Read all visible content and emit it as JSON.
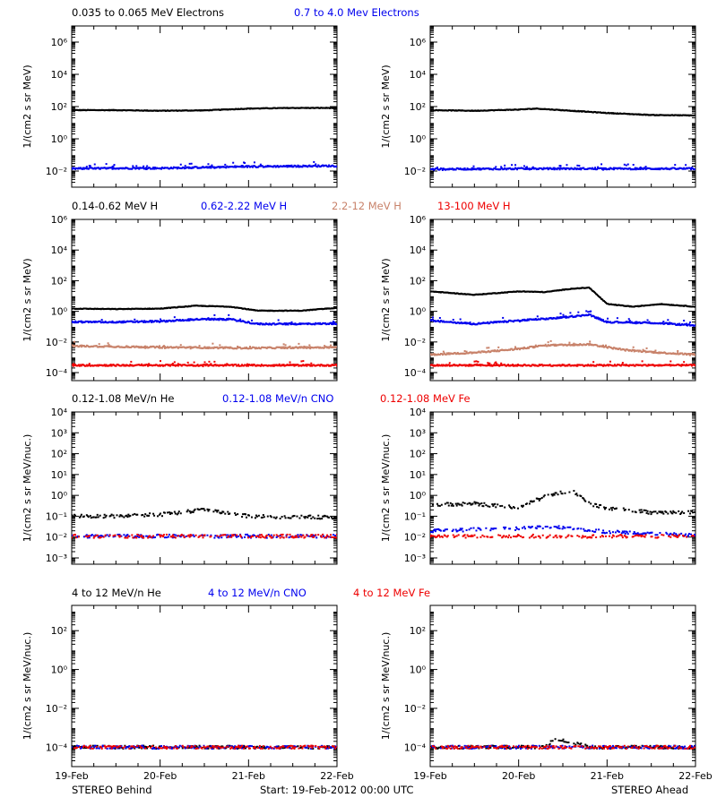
{
  "colors": {
    "black": "#000000",
    "blue": "#0000ee",
    "tan": "#c8826a",
    "red": "#ee0000"
  },
  "footer": {
    "left": "STEREO Behind",
    "center": "Start: 19-Feb-2012 00:00 UTC",
    "right": "STEREO Ahead"
  },
  "chart_data": [
    {
      "type": "scatter",
      "panel": "row1-left",
      "scale": "log",
      "ylabel": "1/(cm2 s sr MeV)",
      "ylim": [
        0.001,
        10000000
      ],
      "ytick_exponents": [
        -2,
        0,
        2,
        4,
        6
      ],
      "xtick_labels": [
        "19-Feb",
        "20-Feb",
        "21-Feb",
        "22-Feb"
      ],
      "xlim_days": [
        0,
        3
      ],
      "series": [
        {
          "name": "0.035 to 0.065 MeV Electrons",
          "color": "#000000",
          "points": [
            [
              0,
              60
            ],
            [
              0.5,
              60
            ],
            [
              1,
              55
            ],
            [
              1.5,
              58
            ],
            [
              2,
              75
            ],
            [
              2.5,
              82
            ],
            [
              3,
              82
            ]
          ]
        },
        {
          "name": "0.7 to 4.0 Mev Electrons",
          "color": "#0000ee",
          "points": [
            [
              0,
              0.014
            ],
            [
              0.5,
              0.015
            ],
            [
              1,
              0.015
            ],
            [
              1.5,
              0.017
            ],
            [
              2,
              0.019
            ],
            [
              2.5,
              0.02
            ],
            [
              3,
              0.021
            ]
          ]
        }
      ]
    },
    {
      "type": "scatter",
      "panel": "row1-right",
      "scale": "log",
      "ylabel": "1/(cm2 s sr MeV)",
      "ylim": [
        0.001,
        10000000
      ],
      "ytick_exponents": [
        -2,
        0,
        2,
        4,
        6
      ],
      "xtick_labels": [
        "19-Feb",
        "20-Feb",
        "21-Feb",
        "22-Feb"
      ],
      "xlim_days": [
        0,
        3
      ],
      "series": [
        {
          "name": "0.035 to 0.065 MeV Electrons",
          "color": "#000000",
          "points": [
            [
              0,
              60
            ],
            [
              0.5,
              55
            ],
            [
              1,
              65
            ],
            [
              1.2,
              75
            ],
            [
              1.6,
              55
            ],
            [
              2,
              40
            ],
            [
              2.5,
              30
            ],
            [
              3,
              28
            ]
          ]
        },
        {
          "name": "0.7 to 4.0 Mev Electrons",
          "color": "#0000ee",
          "points": [
            [
              0,
              0.013
            ],
            [
              1,
              0.014
            ],
            [
              2,
              0.014
            ],
            [
              3,
              0.014
            ]
          ]
        }
      ]
    },
    {
      "type": "scatter",
      "panel": "row2-left",
      "scale": "log",
      "ylabel": "1/(cm2 s sr MeV)",
      "ylim": [
        3e-05,
        1000000
      ],
      "ytick_exponents": [
        -4,
        -2,
        0,
        2,
        4,
        6
      ],
      "xtick_labels": [
        "19-Feb",
        "20-Feb",
        "21-Feb",
        "22-Feb"
      ],
      "xlim_days": [
        0,
        3
      ],
      "series": [
        {
          "name": "0.14-0.62 MeV H",
          "color": "#000000",
          "points": [
            [
              0,
              1.5
            ],
            [
              0.5,
              1.4
            ],
            [
              1,
              1.5
            ],
            [
              1.4,
              2.3
            ],
            [
              1.8,
              2.0
            ],
            [
              2.1,
              1.1
            ],
            [
              2.6,
              1.1
            ],
            [
              3,
              1.7
            ]
          ]
        },
        {
          "name": "0.62-2.22 MeV H",
          "color": "#0000ee",
          "points": [
            [
              0,
              0.2
            ],
            [
              0.5,
              0.2
            ],
            [
              1,
              0.22
            ],
            [
              1.4,
              0.3
            ],
            [
              1.8,
              0.3
            ],
            [
              2.1,
              0.15
            ],
            [
              2.6,
              0.15
            ],
            [
              3,
              0.16
            ]
          ]
        },
        {
          "name": "2.2-12 MeV H",
          "color": "#c8826a",
          "points": [
            [
              0,
              0.0055
            ],
            [
              1,
              0.0045
            ],
            [
              2,
              0.004
            ],
            [
              3,
              0.0045
            ]
          ]
        },
        {
          "name": "13-100 MeV H",
          "color": "#ee0000",
          "points": [
            [
              0,
              0.0003
            ],
            [
              1,
              0.0003
            ],
            [
              2,
              0.0003
            ],
            [
              3,
              0.0003
            ]
          ]
        }
      ]
    },
    {
      "type": "scatter",
      "panel": "row2-right",
      "scale": "log",
      "ylabel": "1/(cm2 s sr MeV)",
      "ylim": [
        3e-05,
        1000000
      ],
      "ytick_exponents": [
        -4,
        -2,
        0,
        2,
        4,
        6
      ],
      "xtick_labels": [
        "19-Feb",
        "20-Feb",
        "21-Feb",
        "22-Feb"
      ],
      "xlim_days": [
        0,
        3
      ],
      "series": [
        {
          "name": "0.14-0.62 MeV H",
          "color": "#000000",
          "points": [
            [
              0,
              20
            ],
            [
              0.5,
              12
            ],
            [
              1,
              20
            ],
            [
              1.3,
              18
            ],
            [
              1.6,
              30
            ],
            [
              1.8,
              35
            ],
            [
              2,
              3
            ],
            [
              2.3,
              2
            ],
            [
              2.6,
              3
            ],
            [
              3,
              2
            ]
          ]
        },
        {
          "name": "0.62-2.22 MeV H",
          "color": "#0000ee",
          "points": [
            [
              0,
              0.25
            ],
            [
              0.5,
              0.15
            ],
            [
              1,
              0.25
            ],
            [
              1.4,
              0.35
            ],
            [
              1.8,
              0.6
            ],
            [
              2,
              0.2
            ],
            [
              2.5,
              0.18
            ],
            [
              3,
              0.12
            ]
          ]
        },
        {
          "name": "2.2-12 MeV H",
          "color": "#c8826a",
          "points": [
            [
              0,
              0.0015
            ],
            [
              0.5,
              0.002
            ],
            [
              1,
              0.0035
            ],
            [
              1.3,
              0.006
            ],
            [
              1.8,
              0.007
            ],
            [
              2.2,
              0.003
            ],
            [
              2.6,
              0.002
            ],
            [
              3,
              0.0015
            ]
          ]
        },
        {
          "name": "13-100 MeV H",
          "color": "#ee0000",
          "points": [
            [
              0,
              0.0003
            ],
            [
              1,
              0.0003
            ],
            [
              2,
              0.0003
            ],
            [
              3,
              0.0003
            ]
          ]
        }
      ]
    },
    {
      "type": "scatter",
      "panel": "row3-left",
      "scale": "log",
      "ylabel": "1/(cm2 s sr MeV/nuc.)",
      "ylim": [
        0.0005,
        10000
      ],
      "ytick_exponents": [
        -3,
        -2,
        -1,
        0,
        1,
        2,
        3,
        4
      ],
      "xtick_labels": [
        "19-Feb",
        "20-Feb",
        "21-Feb",
        "22-Feb"
      ],
      "xlim_days": [
        0,
        3
      ],
      "series": [
        {
          "name": "0.12-1.08 MeV/n He",
          "color": "#000000",
          "points": [
            [
              0,
              0.1
            ],
            [
              0.5,
              0.1
            ],
            [
              1,
              0.12
            ],
            [
              1.5,
              0.2
            ],
            [
              2,
              0.1
            ],
            [
              2.5,
              0.09
            ],
            [
              3,
              0.09
            ]
          ]
        },
        {
          "name": "0.12-1.08 MeV/n CNO",
          "color": "#0000ee",
          "points": [
            [
              0,
              0.011
            ],
            [
              3,
              0.011
            ]
          ]
        },
        {
          "name": "0.12-1.08 MeV Fe",
          "color": "#ee0000",
          "points": [
            [
              0,
              0.011
            ],
            [
              3,
              0.011
            ]
          ]
        }
      ]
    },
    {
      "type": "scatter",
      "panel": "row3-right",
      "scale": "log",
      "ylabel": "1/(cm2 s sr MeV/nuc.)",
      "ylim": [
        0.0005,
        10000
      ],
      "ytick_exponents": [
        -3,
        -2,
        -1,
        0,
        1,
        2,
        3,
        4
      ],
      "xtick_labels": [
        "19-Feb",
        "20-Feb",
        "21-Feb",
        "22-Feb"
      ],
      "xlim_days": [
        0,
        3
      ],
      "series": [
        {
          "name": "0.12-1.08 MeV/n He",
          "color": "#000000",
          "points": [
            [
              0,
              0.35
            ],
            [
              0.5,
              0.4
            ],
            [
              1,
              0.25
            ],
            [
              1.3,
              0.9
            ],
            [
              1.6,
              1.8
            ],
            [
              1.8,
              0.4
            ],
            [
              2,
              0.25
            ],
            [
              2.5,
              0.15
            ],
            [
              3,
              0.15
            ]
          ]
        },
        {
          "name": "0.12-1.08 MeV/n CNO",
          "color": "#0000ee",
          "points": [
            [
              0,
              0.02
            ],
            [
              1.5,
              0.03
            ],
            [
              2,
              0.018
            ],
            [
              3,
              0.012
            ]
          ]
        },
        {
          "name": "0.12-1.08 MeV Fe",
          "color": "#ee0000",
          "points": [
            [
              0,
              0.011
            ],
            [
              3,
              0.011
            ]
          ]
        }
      ]
    },
    {
      "type": "scatter",
      "panel": "row4-left",
      "scale": "log",
      "ylabel": "1/(cm2 s sr MeV/nuc.)",
      "ylim": [
        1e-05,
        2000
      ],
      "ytick_exponents": [
        -4,
        -2,
        0,
        2
      ],
      "xtick_labels": [
        "19-Feb",
        "20-Feb",
        "21-Feb",
        "22-Feb"
      ],
      "xlim_days": [
        0,
        3
      ],
      "series": [
        {
          "name": "4 to 12 MeV/n He",
          "color": "#000000",
          "points": [
            [
              0,
              0.0001
            ],
            [
              3,
              0.0001
            ]
          ]
        },
        {
          "name": "4 to 12 MeV/n CNO",
          "color": "#0000ee",
          "points": [
            [
              0,
              0.0001
            ],
            [
              3,
              0.0001
            ]
          ]
        },
        {
          "name": "4 to 12 MeV Fe",
          "color": "#ee0000",
          "points": [
            [
              0,
              0.0001
            ],
            [
              3,
              0.0001
            ]
          ]
        }
      ]
    },
    {
      "type": "scatter",
      "panel": "row4-right",
      "scale": "log",
      "ylabel": "1/(cm2 s sr MeV/nuc.)",
      "ylim": [
        1e-05,
        2000
      ],
      "ytick_exponents": [
        -4,
        -2,
        0,
        2
      ],
      "xtick_labels": [
        "19-Feb",
        "20-Feb",
        "21-Feb",
        "22-Feb"
      ],
      "xlim_days": [
        0,
        3
      ],
      "series": [
        {
          "name": "4 to 12 MeV/n He",
          "color": "#000000",
          "points": [
            [
              0,
              0.0001
            ],
            [
              1.3,
              0.0001
            ],
            [
              1.4,
              0.00025
            ],
            [
              1.6,
              0.00018
            ],
            [
              1.8,
              0.0001
            ],
            [
              3,
              0.0001
            ]
          ]
        },
        {
          "name": "4 to 12 MeV/n CNO",
          "color": "#0000ee",
          "points": [
            [
              0,
              0.0001
            ],
            [
              3,
              0.0001
            ]
          ]
        },
        {
          "name": "4 to 12 MeV Fe",
          "color": "#ee0000",
          "points": [
            [
              0,
              0.0001
            ],
            [
              3,
              0.0001
            ]
          ]
        }
      ]
    }
  ]
}
